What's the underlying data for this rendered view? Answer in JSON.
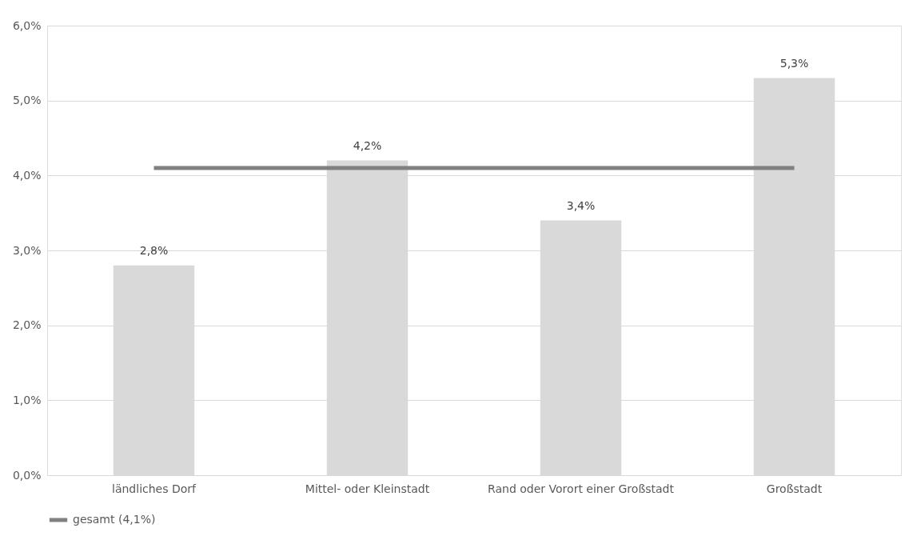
{
  "chart_data": {
    "type": "bar",
    "categories": [
      "ländliches Dorf",
      "Mittel- oder Kleinstadt",
      "Rand oder Vorort einer Großstadt",
      "Großstadt"
    ],
    "series": [
      {
        "color": "#d9d9d9",
        "values": [
          2.8,
          4.2,
          3.4,
          5.3
        ],
        "value_labels": [
          "2,8%",
          "4,2%",
          "3,4%",
          "5,3%"
        ]
      },
      {
        "type": "line",
        "name": "gesamt (4,1%)",
        "color": "#808080",
        "values": [
          4.1,
          4.1,
          4.1,
          4.1
        ],
        "marker": "none",
        "line_style": "solid"
      }
    ],
    "ylim": [
      0,
      6
    ],
    "yticks": [
      {
        "value": 0,
        "label": "0,0%"
      },
      {
        "value": 1,
        "label": "1,0%"
      },
      {
        "value": 2,
        "label": "2,0%"
      },
      {
        "value": 3,
        "label": "3,0%"
      },
      {
        "value": 4,
        "label": "4,0%"
      },
      {
        "value": 5,
        "label": "5,0%"
      },
      {
        "value": 6,
        "label": "6,0%"
      }
    ],
    "grid": "y",
    "legend": "bottom"
  }
}
